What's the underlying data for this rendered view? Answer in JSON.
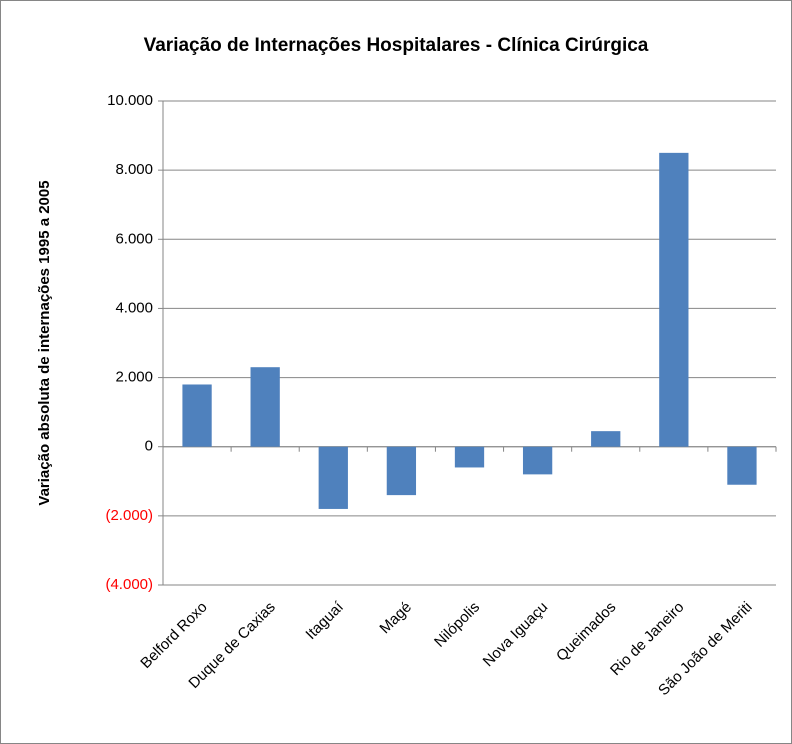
{
  "chart_data": {
    "type": "bar",
    "title": "Variação de Internações Hospitalares - Clínica Cirúrgica",
    "y_label": "Variação absoluta  de internações 1995 a 2005",
    "categories": [
      "Belford Roxo",
      "Duque de Caxias",
      "Itaguaí",
      "Magé",
      "Nilópolis",
      "Nova Iguaçu",
      "Queimados",
      "Rio de Janeiro",
      "São João de Meriti"
    ],
    "values": [
      1800,
      2300,
      -1800,
      -1400,
      -600,
      -800,
      450,
      8500,
      -1100
    ],
    "color": "#4f81bd",
    "ylim": [
      -4000,
      10000
    ],
    "yticks": [
      {
        "value": 10000,
        "label": "10.000"
      },
      {
        "value": 8000,
        "label": "8.000"
      },
      {
        "value": 6000,
        "label": "6.000"
      },
      {
        "value": 4000,
        "label": "4.000"
      },
      {
        "value": 2000,
        "label": "2.000"
      },
      0,
      {
        "value": -2000,
        "label": "(2.000)"
      },
      {
        "value": -4000,
        "label": "(4.000)"
      }
    ],
    "negative_tick_color": "#ff0000",
    "grid": true
  }
}
